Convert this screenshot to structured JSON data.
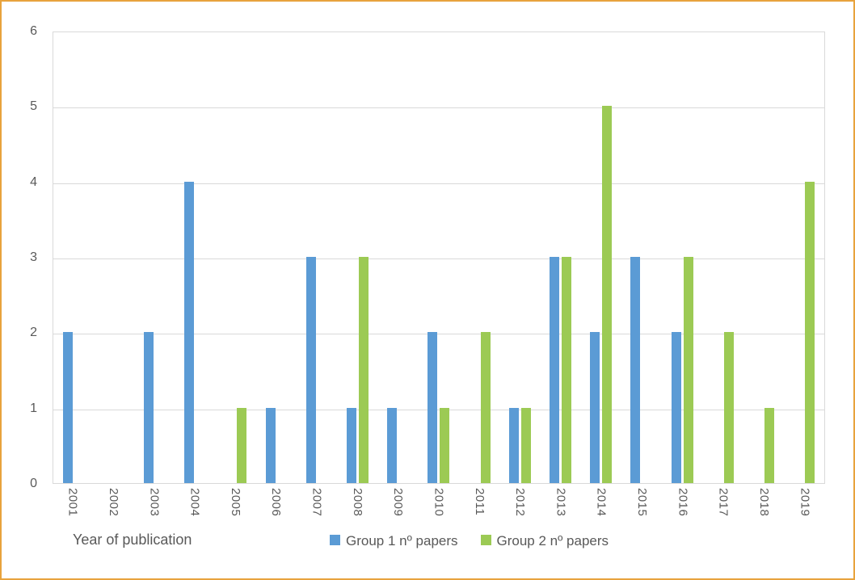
{
  "chart_data": {
    "type": "bar",
    "title": "",
    "xlabel": "Year of publication",
    "ylabel": "",
    "categories": [
      "2001",
      "2002",
      "2003",
      "2004",
      "2005",
      "2006",
      "2007",
      "2008",
      "2009",
      "2010",
      "2011",
      "2012",
      "2013",
      "2014",
      "2015",
      "2016",
      "2017",
      "2018",
      "2019"
    ],
    "series": [
      {
        "name": "Group 1 nº papers",
        "color": "#5B9BD5",
        "values": [
          2,
          0,
          2,
          4,
          0,
          1,
          3,
          1,
          1,
          2,
          0,
          1,
          3,
          2,
          3,
          2,
          0,
          0,
          0
        ]
      },
      {
        "name": "Group 2 nº papers",
        "color": "#9CCA54",
        "values": [
          0,
          0,
          0,
          0,
          1,
          0,
          0,
          3,
          0,
          1,
          2,
          1,
          3,
          5,
          0,
          3,
          2,
          1,
          4
        ]
      }
    ],
    "ylim": [
      0,
      6
    ],
    "ytick_step": 1,
    "yticks": [
      "0",
      "1",
      "2",
      "3",
      "4",
      "5",
      "6"
    ],
    "grid": true,
    "legend_position": "bottom"
  },
  "frame": {
    "border_color": "#E8A33D",
    "background": "#FFFFFF"
  },
  "axis": {
    "text_color": "#595959",
    "gridline_color": "#D9D9D9"
  }
}
